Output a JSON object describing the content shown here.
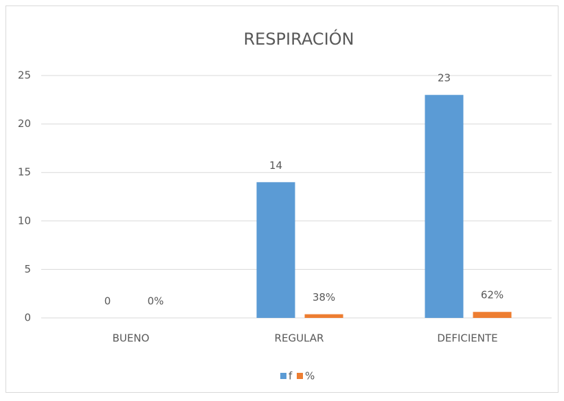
{
  "chart_data": {
    "type": "bar",
    "title": "RESPIRACIÓN",
    "categories": [
      "BUENO",
      "REGULAR",
      "DEFICIENTE"
    ],
    "series": [
      {
        "name": "f",
        "color": "#5b9bd5",
        "values": [
          0,
          14,
          23
        ]
      },
      {
        "name": "%",
        "color": "#ed7d31",
        "values": [
          0,
          0.38,
          0.62
        ],
        "value_labels": [
          "0%",
          "38%",
          "62%"
        ]
      }
    ],
    "ylim": [
      0,
      25
    ],
    "yticks": [
      0,
      5,
      10,
      15,
      20,
      25
    ],
    "grid": true,
    "legend": "bottom"
  }
}
